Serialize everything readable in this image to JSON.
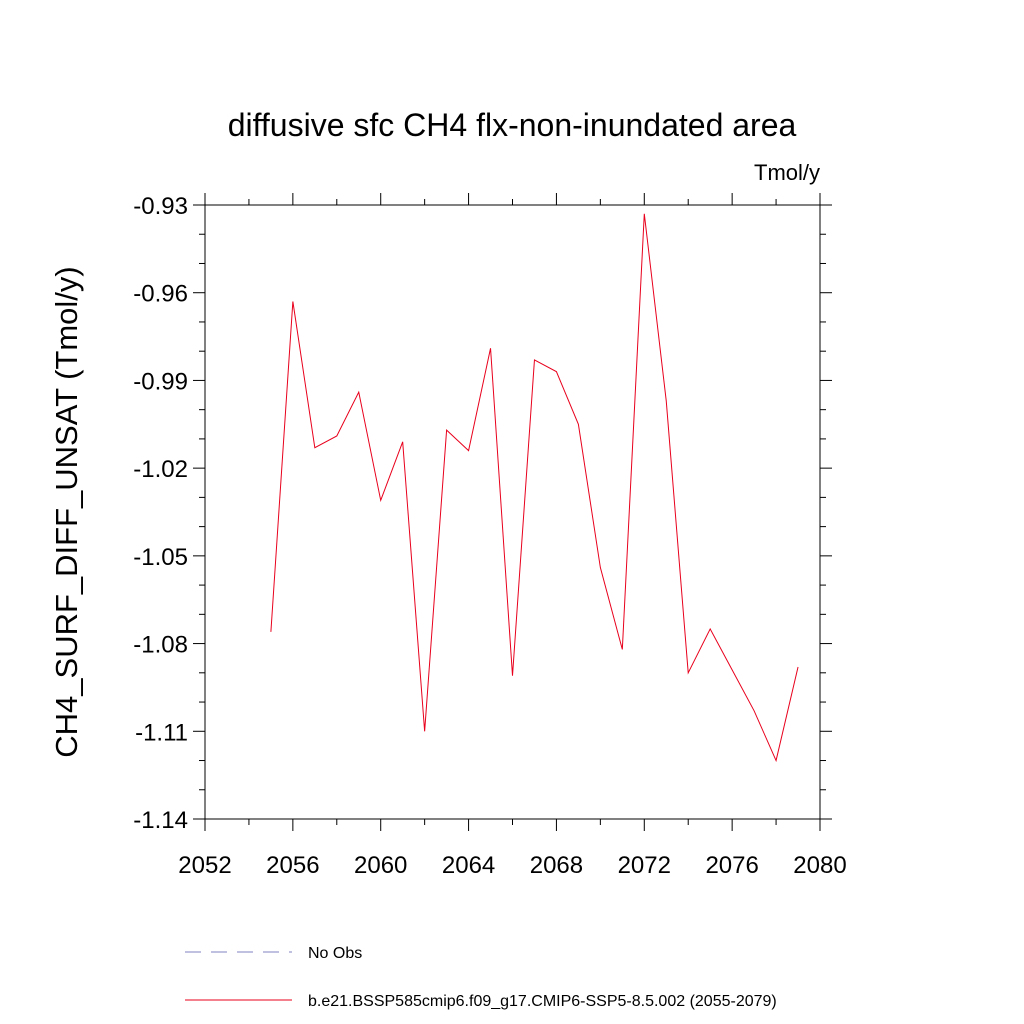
{
  "chart_data": {
    "type": "line",
    "title": "diffusive sfc CH4 flx-non-inundated area",
    "units": "Tmol/y",
    "ylabel": "CH4_SURF_DIFF_UNSAT  (Tmol/y)",
    "xlabel": "",
    "xlim": [
      2052,
      2080
    ],
    "ylim": [
      -1.14,
      -0.93
    ],
    "xticks": [
      2052,
      2056,
      2060,
      2064,
      2068,
      2072,
      2076,
      2080
    ],
    "yticks": [
      -0.93,
      -0.96,
      -0.99,
      -1.02,
      -1.05,
      -1.08,
      -1.11,
      -1.14
    ],
    "xtick_labels": [
      "2052",
      "2056",
      "2060",
      "2064",
      "2068",
      "2072",
      "2076",
      "2080"
    ],
    "ytick_labels": [
      "-0.93",
      "-0.96",
      "-0.99",
      "-1.02",
      "-1.05",
      "-1.08",
      "-1.11",
      "-1.14"
    ],
    "grid": false,
    "legend_position": "bottom",
    "series": [
      {
        "name": "b.e21.BSSP585cmip6.f09_g17.CMIP6-SSP5-8.5.002 (2055-2079)",
        "color": "#e8001c",
        "style": "solid",
        "x": [
          2055,
          2056,
          2057,
          2058,
          2059,
          2060,
          2061,
          2062,
          2063,
          2064,
          2065,
          2066,
          2067,
          2068,
          2069,
          2070,
          2071,
          2072,
          2073,
          2074,
          2075,
          2076,
          2077,
          2078,
          2079
        ],
        "y": [
          -1.076,
          -0.963,
          -1.013,
          -1.009,
          -0.994,
          -1.031,
          -1.011,
          -1.11,
          -1.007,
          -1.014,
          -0.979,
          -1.091,
          -0.983,
          -0.987,
          -1.005,
          -1.054,
          -1.082,
          -0.933,
          -0.997,
          -1.09,
          -1.075,
          -1.089,
          -1.103,
          -1.12,
          -1.088
        ]
      },
      {
        "name": "No Obs",
        "color": "#8080c0",
        "style": "dashed",
        "x": [],
        "y": []
      }
    ]
  }
}
